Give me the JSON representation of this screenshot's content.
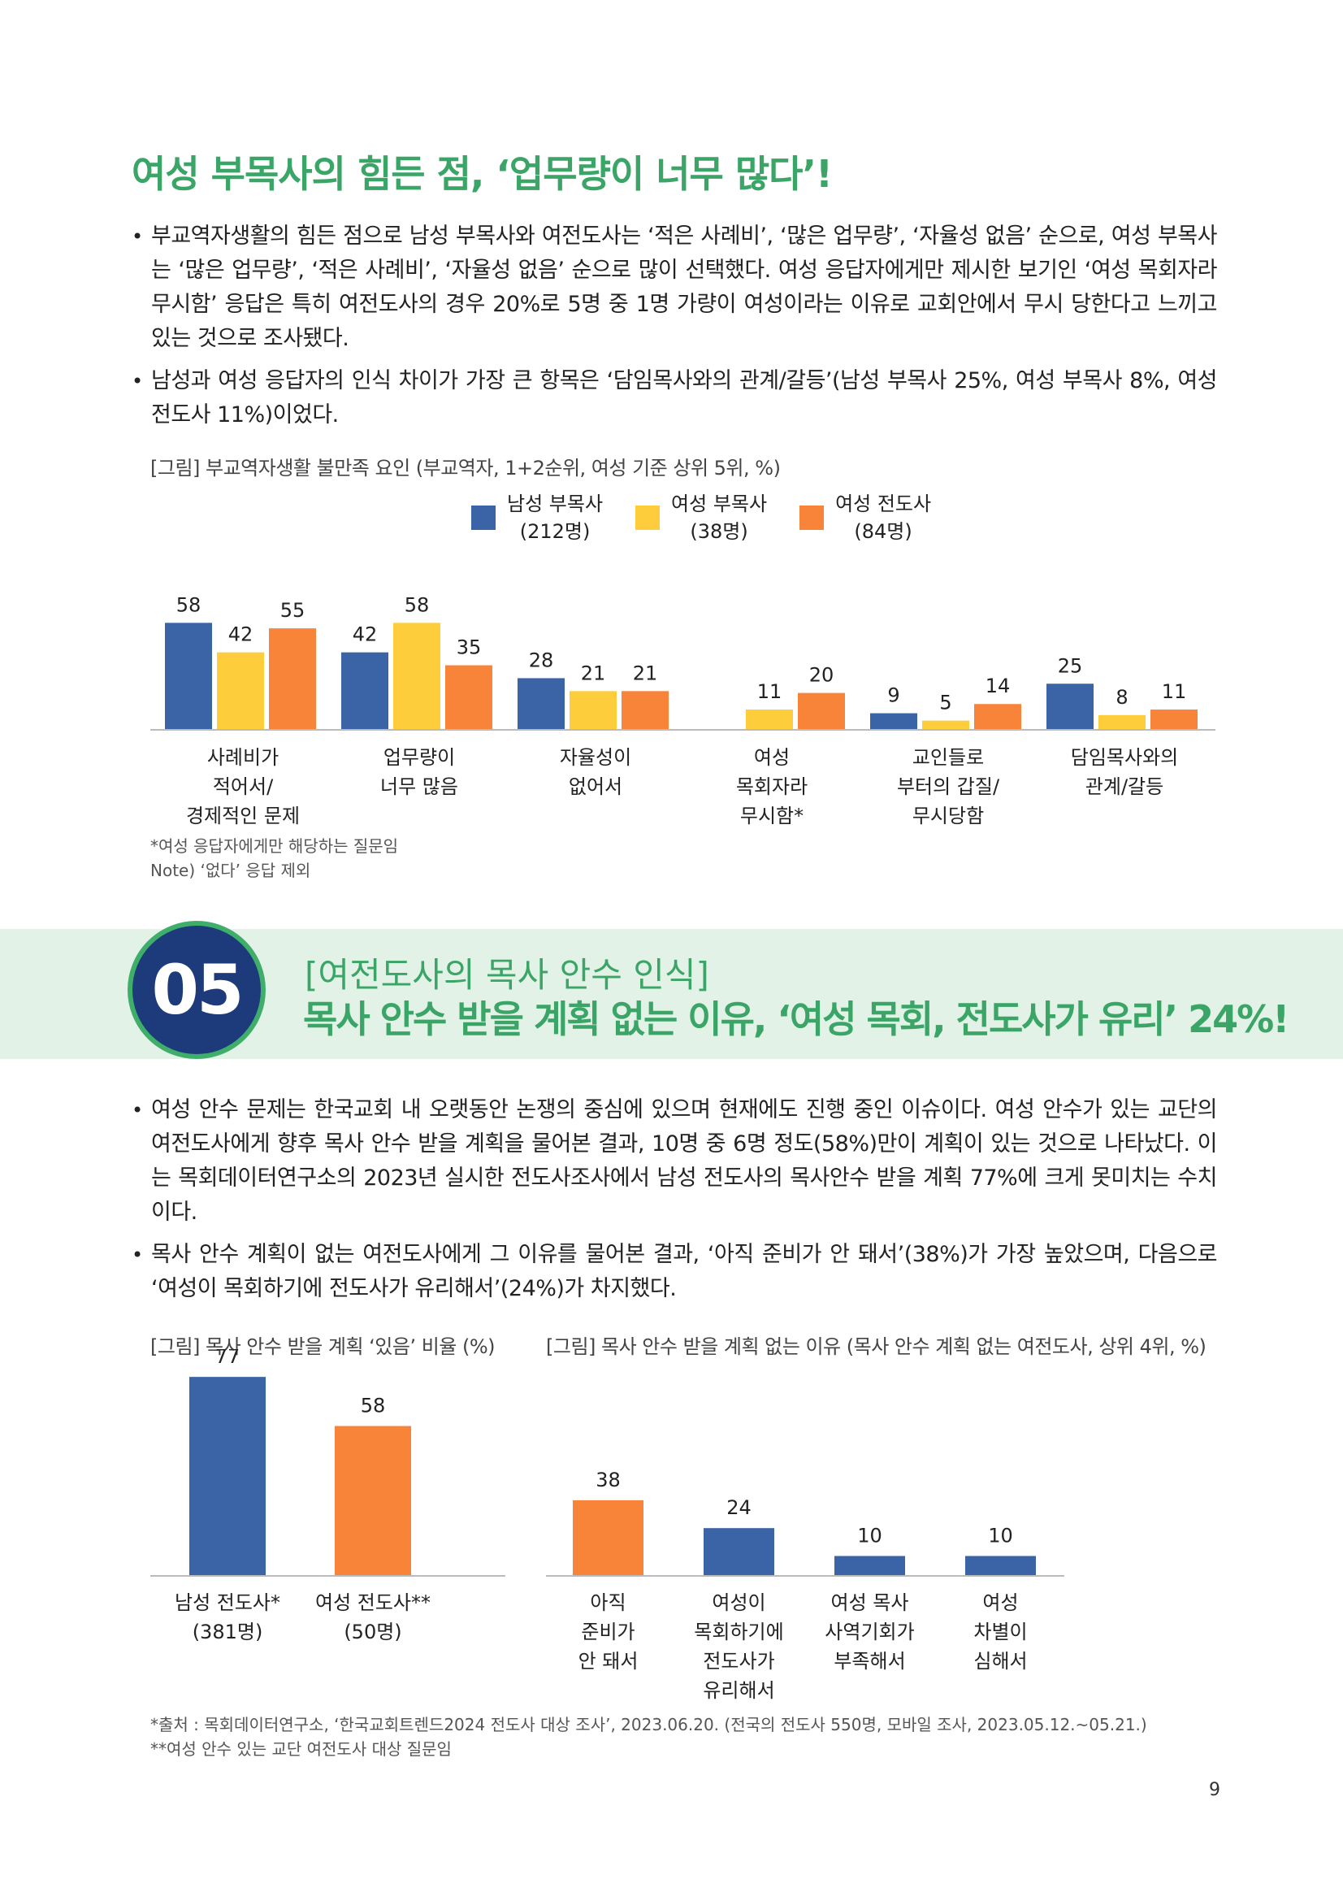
{
  "heading": "여성 부목사의 힘든 점, ‘업무량이 너무 많다’!",
  "bullets_top": [
    "부교역자생활의 힘든 점으로 남성 부목사와 여전도사는 ‘적은 사례비’, ‘많은 업무량’, ‘자율성 없음’ 순으로, 여성 부목사는 ‘많은 업무량’, ‘적은 사례비’, ‘자율성 없음’ 순으로 많이 선택했다. 여성 응답자에게만 제시한 보기인 ‘여성 목회자라 무시함’ 응답은 특히 여전도사의 경우 20%로 5명 중 1명 가량이 여성이라는 이유로 교회안에서 무시 당한다고 느끼고 있는 것으로 조사됐다.",
    "남성과 여성 응답자의 인식 차이가 가장 큰 항목은 ‘담임목사와의 관계/갈등’(남성 부목사 25%, 여성 부목사 8%, 여성 전도사 11%)이었다."
  ],
  "fig1_label": "[그림] 부교역자생활 불만족 요인 (부교역자, 1+2순위, 여성 기준 상위 5위, %)",
  "fig1_notes": [
    "*여성 응답자에게만 해당하는 질문임",
    "Note) ‘없다’ 응답 제외"
  ],
  "section": {
    "number": "05",
    "subtitle": "[여전도사의 목사 안수 인식]",
    "title": "목사 안수 받을 계획 없는 이유, ‘여성 목회, 전도사가 유리’ 24%!"
  },
  "bullets_bottom": [
    "여성 안수 문제는 한국교회 내 오랫동안 논쟁의 중심에 있으며 현재에도 진행 중인 이슈이다. 여성 안수가 있는 교단의 여전도사에게 향후 목사 안수 받을 계획을 물어본 결과, 10명 중 6명 정도(58%)만이 계획이 있는 것으로 나타났다. 이는 목회데이터연구소의 2023년 실시한 전도사조사에서 남성 전도사의 목사안수 받을 계획 77%에 크게 못미치는 수치이다.",
    "목사 안수 계획이 없는 여전도사에게 그 이유를 물어본 결과, ‘아직 준비가 안 돼서’(38%)가 가장 높았으며, 다음으로 ‘여성이 목회하기에 전도사가 유리해서’(24%)가 차지했다."
  ],
  "fig2_label": "[그림] 목사 안수 받을 계획 ‘있음’ 비율 (%)",
  "fig3_label": "[그림] 목사 안수 받을 계획 없는 이유 (목사 안수 계획 없는 여전도사, 상위 4위, %)",
  "footnotes": [
    "*출처 : 목회데이터연구소, ‘한국교회트렌드2024 전도사 대상 조사’, 2023.06.20. (전국의 전도사 550명, 모바일 조사, 2023.05.12.~05.21.)",
    "**여성 안수 있는 교단 여전도사 대상 질문임"
  ],
  "page_number": "9",
  "chart_data": [
    {
      "type": "bar",
      "categories": [
        [
          "사례비가",
          "적어서/",
          "경제적인 문제"
        ],
        [
          "업무량이",
          "너무 많음"
        ],
        [
          "자율성이",
          "없어서"
        ],
        [
          "여성",
          "목회자라",
          "무시함*"
        ],
        [
          "교인들로",
          "부터의 갑질/",
          "무시당함"
        ],
        [
          "담임목사와의",
          "관계/갈등"
        ]
      ],
      "series": [
        {
          "name": [
            "남성 부목사",
            "(212명)"
          ],
          "color": "#3a64a6",
          "values": [
            58,
            42,
            28,
            null,
            9,
            25
          ]
        },
        {
          "name": [
            "여성 부목사",
            "(38명)"
          ],
          "color": "#fdcd3b",
          "values": [
            42,
            58,
            21,
            11,
            5,
            8
          ]
        },
        {
          "name": [
            "여성 전도사",
            "(84명)"
          ],
          "color": "#f8843a",
          "values": [
            55,
            35,
            21,
            20,
            14,
            11
          ]
        }
      ],
      "ylim": [
        0,
        65
      ],
      "legend": "top-center"
    },
    {
      "type": "bar",
      "categories": [
        [
          "남성 전도사*",
          "(381명)"
        ],
        [
          "여성 전도사**",
          "(50명)"
        ]
      ],
      "values": [
        77,
        58
      ],
      "colors": [
        "#3a64a6",
        "#f8843a"
      ],
      "ylim": [
        0,
        85
      ]
    },
    {
      "type": "bar",
      "categories": [
        [
          "아직",
          "준비가",
          "안 돼서"
        ],
        [
          "여성이",
          "목회하기에",
          "전도사가",
          "유리해서"
        ],
        [
          "여성 목사",
          "사역기회가",
          "부족해서"
        ],
        [
          "여성",
          "차별이",
          "심해서"
        ]
      ],
      "values": [
        38,
        24,
        10,
        10
      ],
      "colors": [
        "#f8843a",
        "#3a64a6",
        "#3a64a6",
        "#3a64a6"
      ],
      "ylim": [
        0,
        45
      ]
    }
  ]
}
